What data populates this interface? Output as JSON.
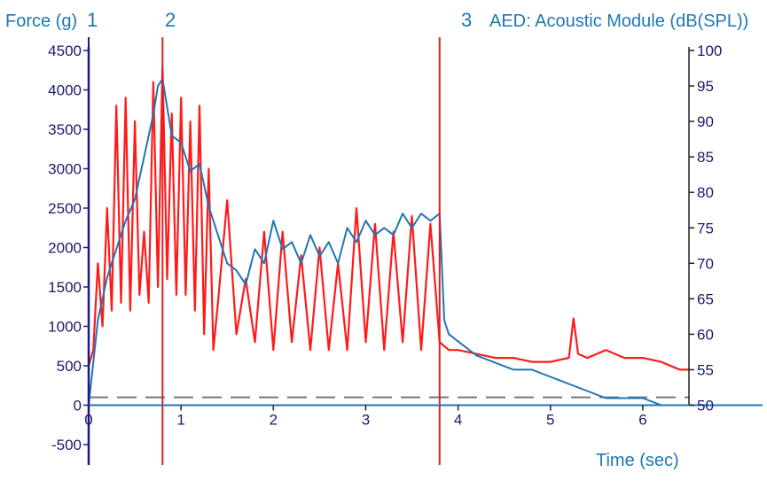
{
  "header": {
    "left_label": "Force (g)",
    "cursor_labels": [
      "1",
      "2",
      "3"
    ],
    "right_label": "AED: Acoustic Module (dB(SPL))"
  },
  "colors": {
    "force": "#ff1a1a",
    "acoustic": "#1f77b4",
    "peaks": "#22cc22",
    "cursor": "#e02020",
    "axis": "#1a1a8e",
    "threshold": "#777777"
  },
  "chart_data": {
    "type": "line",
    "xlabel": "Time (sec)",
    "ylabel": "Force (g)",
    "y2label": "AED: Acoustic Module (dB(SPL))",
    "xlim": [
      0,
      6.5
    ],
    "ylim": [
      -500,
      4500
    ],
    "y2lim": [
      50,
      100
    ],
    "x_ticks": [
      0,
      1,
      2,
      3,
      4,
      5,
      6
    ],
    "y_ticks": [
      4500,
      4000,
      3500,
      3000,
      2500,
      2000,
      1500,
      1000,
      500,
      0,
      -500
    ],
    "y2_ticks": [
      100,
      95,
      90,
      85,
      80,
      75,
      70,
      65,
      60,
      55,
      50
    ],
    "cursors": [
      {
        "label": "1",
        "x": 0.0
      },
      {
        "label": "2",
        "x": 0.8
      },
      {
        "label": "3",
        "x": 3.8
      }
    ],
    "threshold_force": 100,
    "series": [
      {
        "axis": "left",
        "x": [
          0,
          0.05,
          0.1,
          0.15,
          0.2,
          0.25,
          0.3,
          0.35,
          0.4,
          0.45,
          0.5,
          0.55,
          0.6,
          0.65,
          0.7,
          0.75,
          0.8,
          0.85,
          0.9,
          0.95,
          1.0,
          1.05,
          1.1,
          1.15,
          1.2,
          1.25,
          1.3,
          1.35,
          1.4,
          1.5,
          1.6,
          1.7,
          1.8,
          1.9,
          2.0,
          2.1,
          2.2,
          2.3,
          2.4,
          2.5,
          2.6,
          2.7,
          2.8,
          2.9,
          3.0,
          3.1,
          3.2,
          3.3,
          3.4,
          3.5,
          3.6,
          3.7,
          3.8,
          3.9,
          4.0,
          4.2,
          4.4,
          4.6,
          4.8,
          5.0,
          5.2,
          5.25,
          5.3,
          5.4,
          5.6,
          5.8,
          6.0,
          6.2,
          6.4,
          6.5
        ],
        "y": [
          500,
          700,
          1800,
          1000,
          2500,
          1200,
          3800,
          1300,
          3900,
          1200,
          3600,
          1400,
          2200,
          1300,
          4100,
          1500,
          4300,
          1600,
          3700,
          1400,
          3900,
          1400,
          3600,
          1200,
          3800,
          900,
          3000,
          700,
          1300,
          2600,
          900,
          1600,
          800,
          2200,
          700,
          2200,
          800,
          1900,
          700,
          2000,
          700,
          1800,
          700,
          2500,
          800,
          2300,
          700,
          2200,
          800,
          2400,
          700,
          2300,
          800,
          700,
          700,
          650,
          600,
          600,
          550,
          550,
          600,
          1100,
          650,
          600,
          700,
          600,
          600,
          550,
          450,
          450
        ]
      },
      {
        "axis": "right",
        "x": [
          0,
          0.1,
          0.2,
          0.3,
          0.4,
          0.5,
          0.6,
          0.7,
          0.75,
          0.8,
          0.9,
          1.0,
          1.1,
          1.2,
          1.3,
          1.4,
          1.5,
          1.6,
          1.7,
          1.8,
          1.9,
          2.0,
          2.1,
          2.2,
          2.3,
          2.4,
          2.5,
          2.6,
          2.7,
          2.8,
          2.9,
          3.0,
          3.1,
          3.2,
          3.3,
          3.4,
          3.5,
          3.6,
          3.7,
          3.8,
          3.85,
          3.9,
          4.0,
          4.2,
          4.4,
          4.6,
          4.8,
          5.0,
          5.2,
          5.4,
          5.6,
          5.8,
          6.0,
          6.2,
          6.5
        ],
        "y": [
          50,
          62,
          68,
          72,
          76,
          79,
          85,
          91,
          95,
          96,
          88,
          87,
          83,
          84,
          78,
          74,
          70,
          69,
          67,
          72,
          70,
          76,
          72,
          73,
          70,
          74,
          71,
          73,
          70,
          75,
          73,
          76,
          74,
          75,
          74,
          77,
          75,
          77,
          76,
          77,
          62,
          60,
          59,
          57,
          56,
          55,
          55,
          54,
          53,
          52,
          51,
          51,
          51,
          50,
          50
        ]
      }
    ]
  }
}
